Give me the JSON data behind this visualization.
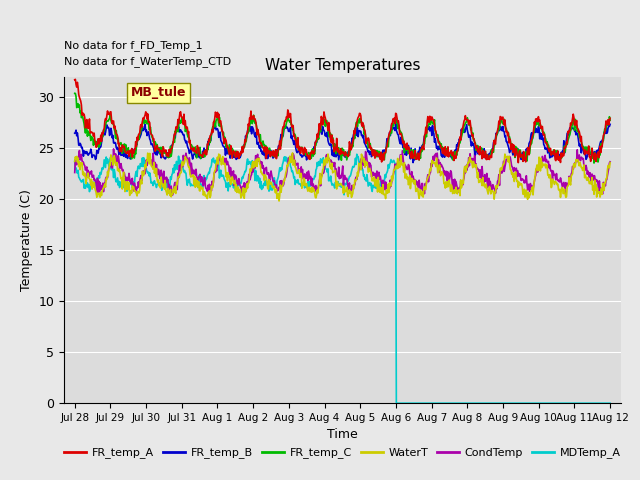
{
  "title": "Water Temperatures",
  "xlabel": "Time",
  "ylabel": "Temperature (C)",
  "ylim": [
    0,
    32
  ],
  "annotations": [
    "No data for f_FD_Temp_1",
    "No data for f_WaterTemp_CTD"
  ],
  "legend_box_label": "MB_tule",
  "plot_bg_color": "#dcdcdc",
  "fig_bg_color": "#e8e8e8",
  "series": {
    "FR_temp_A": {
      "color": "#dd0000"
    },
    "FR_temp_B": {
      "color": "#0000cc"
    },
    "FR_temp_C": {
      "color": "#00bb00"
    },
    "WaterT": {
      "color": "#cccc00"
    },
    "CondTemp": {
      "color": "#aa00aa"
    },
    "MDTemp_A": {
      "color": "#00cccc"
    }
  },
  "xtick_labels": [
    "Jul 28",
    "Jul 29",
    "Jul 30",
    "Jul 31",
    "Aug 1",
    "Aug 2",
    "Aug 3",
    "Aug 4",
    "Aug 5",
    "Aug 6",
    "Aug 7",
    "Aug 8",
    "Aug 9",
    "Aug 10",
    "Aug 11",
    "Aug 12"
  ],
  "xtick_positions": [
    0,
    1,
    2,
    3,
    4,
    5,
    6,
    7,
    8,
    9,
    10,
    11,
    12,
    13,
    14,
    15
  ],
  "ytick_positions": [
    0,
    5,
    10,
    15,
    20,
    25,
    30
  ],
  "grid_color": "#ffffff",
  "lw": 1.2
}
